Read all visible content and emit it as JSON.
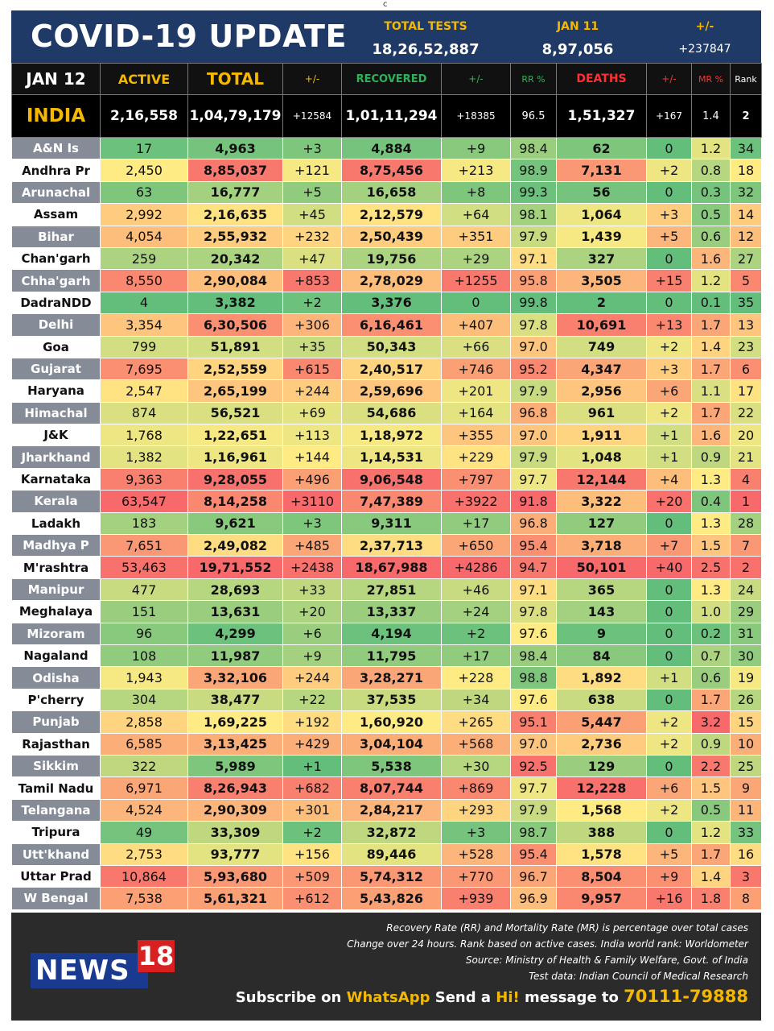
{
  "top_mark": "c",
  "banner": {
    "title": "COVID-19 UPDATE",
    "tests_label": "TOTAL TESTS",
    "tests_value": "18,26,52,887",
    "date_label": "JAN 11",
    "date_value": "8,97,056",
    "change_label": "+/-",
    "change_value": "+237847"
  },
  "header": {
    "date": "JAN 12",
    "active": "ACTIVE",
    "total": "TOTAL",
    "total_change": "+/-",
    "recovered": "RECOVERED",
    "recovered_change": "+/-",
    "rr": "RR %",
    "deaths": "DEATHS",
    "deaths_change": "+/-",
    "mr": "MR %",
    "rank": "Rank"
  },
  "india": {
    "name": "INDIA",
    "active": "2,16,558",
    "total": "1,04,79,179",
    "total_change": "+12584",
    "recovered": "1,01,11,294",
    "recovered_change": "+18385",
    "rr": "96.5",
    "deaths": "1,51,327",
    "deaths_change": "+167",
    "mr": "1.4",
    "rank": "2"
  },
  "states": [
    {
      "name": "A&N Is",
      "active": "17",
      "total": "4,963",
      "total_change": "+3",
      "recovered": "4,884",
      "recovered_change": "+9",
      "rr": "98.4",
      "deaths": "62",
      "deaths_change": "0",
      "mr": "1.2",
      "rank": "34"
    },
    {
      "name": "Andhra Pr",
      "active": "2,450",
      "total": "8,85,037",
      "total_change": "+121",
      "recovered": "8,75,456",
      "recovered_change": "+213",
      "rr": "98.9",
      "deaths": "7,131",
      "deaths_change": "+2",
      "mr": "0.8",
      "rank": "18"
    },
    {
      "name": "Arunachal",
      "active": "63",
      "total": "16,777",
      "total_change": "+5",
      "recovered": "16,658",
      "recovered_change": "+8",
      "rr": "99.3",
      "deaths": "56",
      "deaths_change": "0",
      "mr": "0.3",
      "rank": "32"
    },
    {
      "name": "Assam",
      "active": "2,992",
      "total": "2,16,635",
      "total_change": "+45",
      "recovered": "2,12,579",
      "recovered_change": "+64",
      "rr": "98.1",
      "deaths": "1,064",
      "deaths_change": "+3",
      "mr": "0.5",
      "rank": "14"
    },
    {
      "name": "Bihar",
      "active": "4,054",
      "total": "2,55,932",
      "total_change": "+232",
      "recovered": "2,50,439",
      "recovered_change": "+351",
      "rr": "97.9",
      "deaths": "1,439",
      "deaths_change": "+5",
      "mr": "0.6",
      "rank": "12"
    },
    {
      "name": "Chan'garh",
      "active": "259",
      "total": "20,342",
      "total_change": "+47",
      "recovered": "19,756",
      "recovered_change": "+29",
      "rr": "97.1",
      "deaths": "327",
      "deaths_change": "0",
      "mr": "1.6",
      "rank": "27"
    },
    {
      "name": "Chha'garh",
      "active": "8,550",
      "total": "2,90,084",
      "total_change": "+853",
      "recovered": "2,78,029",
      "recovered_change": "+1255",
      "rr": "95.8",
      "deaths": "3,505",
      "deaths_change": "+15",
      "mr": "1.2",
      "rank": "5"
    },
    {
      "name": "DadraNDD",
      "active": "4",
      "total": "3,382",
      "total_change": "+2",
      "recovered": "3,376",
      "recovered_change": "0",
      "rr": "99.8",
      "deaths": "2",
      "deaths_change": "0",
      "mr": "0.1",
      "rank": "35"
    },
    {
      "name": "Delhi",
      "active": "3,354",
      "total": "6,30,506",
      "total_change": "+306",
      "recovered": "6,16,461",
      "recovered_change": "+407",
      "rr": "97.8",
      "deaths": "10,691",
      "deaths_change": "+13",
      "mr": "1.7",
      "rank": "13"
    },
    {
      "name": "Goa",
      "active": "799",
      "total": "51,891",
      "total_change": "+35",
      "recovered": "50,343",
      "recovered_change": "+66",
      "rr": "97.0",
      "deaths": "749",
      "deaths_change": "+2",
      "mr": "1.4",
      "rank": "23"
    },
    {
      "name": "Gujarat",
      "active": "7,695",
      "total": "2,52,559",
      "total_change": "+615",
      "recovered": "2,40,517",
      "recovered_change": "+746",
      "rr": "95.2",
      "deaths": "4,347",
      "deaths_change": "+3",
      "mr": "1.7",
      "rank": "6"
    },
    {
      "name": "Haryana",
      "active": "2,547",
      "total": "2,65,199",
      "total_change": "+244",
      "recovered": "2,59,696",
      "recovered_change": "+201",
      "rr": "97.9",
      "deaths": "2,956",
      "deaths_change": "+6",
      "mr": "1.1",
      "rank": "17"
    },
    {
      "name": "Himachal",
      "active": "874",
      "total": "56,521",
      "total_change": "+69",
      "recovered": "54,686",
      "recovered_change": "+164",
      "rr": "96.8",
      "deaths": "961",
      "deaths_change": "+2",
      "mr": "1.7",
      "rank": "22"
    },
    {
      "name": "J&K",
      "active": "1,768",
      "total": "1,22,651",
      "total_change": "+113",
      "recovered": "1,18,972",
      "recovered_change": "+355",
      "rr": "97.0",
      "deaths": "1,911",
      "deaths_change": "+1",
      "mr": "1.6",
      "rank": "20"
    },
    {
      "name": "Jharkhand",
      "active": "1,382",
      "total": "1,16,961",
      "total_change": "+144",
      "recovered": "1,14,531",
      "recovered_change": "+229",
      "rr": "97.9",
      "deaths": "1,048",
      "deaths_change": "+1",
      "mr": "0.9",
      "rank": "21"
    },
    {
      "name": "Karnataka",
      "active": "9,363",
      "total": "9,28,055",
      "total_change": "+496",
      "recovered": "9,06,548",
      "recovered_change": "+797",
      "rr": "97.7",
      "deaths": "12,144",
      "deaths_change": "+4",
      "mr": "1.3",
      "rank": "4"
    },
    {
      "name": "Kerala",
      "active": "63,547",
      "total": "8,14,258",
      "total_change": "+3110",
      "recovered": "7,47,389",
      "recovered_change": "+3922",
      "rr": "91.8",
      "deaths": "3,322",
      "deaths_change": "+20",
      "mr": "0.4",
      "rank": "1"
    },
    {
      "name": "Ladakh",
      "active": "183",
      "total": "9,621",
      "total_change": "+3",
      "recovered": "9,311",
      "recovered_change": "+17",
      "rr": "96.8",
      "deaths": "127",
      "deaths_change": "0",
      "mr": "1.3",
      "rank": "28"
    },
    {
      "name": "Madhya P",
      "active": "7,651",
      "total": "2,49,082",
      "total_change": "+485",
      "recovered": "2,37,713",
      "recovered_change": "+650",
      "rr": "95.4",
      "deaths": "3,718",
      "deaths_change": "+7",
      "mr": "1.5",
      "rank": "7"
    },
    {
      "name": "M'rashtra",
      "active": "53,463",
      "total": "19,71,552",
      "total_change": "+2438",
      "recovered": "18,67,988",
      "recovered_change": "+4286",
      "rr": "94.7",
      "deaths": "50,101",
      "deaths_change": "+40",
      "mr": "2.5",
      "rank": "2"
    },
    {
      "name": "Manipur",
      "active": "477",
      "total": "28,693",
      "total_change": "+33",
      "recovered": "27,851",
      "recovered_change": "+46",
      "rr": "97.1",
      "deaths": "365",
      "deaths_change": "0",
      "mr": "1.3",
      "rank": "24"
    },
    {
      "name": "Meghalaya",
      "active": "151",
      "total": "13,631",
      "total_change": "+20",
      "recovered": "13,337",
      "recovered_change": "+24",
      "rr": "97.8",
      "deaths": "143",
      "deaths_change": "0",
      "mr": "1.0",
      "rank": "29"
    },
    {
      "name": "Mizoram",
      "active": "96",
      "total": "4,299",
      "total_change": "+6",
      "recovered": "4,194",
      "recovered_change": "+2",
      "rr": "97.6",
      "deaths": "9",
      "deaths_change": "0",
      "mr": "0.2",
      "rank": "31"
    },
    {
      "name": "Nagaland",
      "active": "108",
      "total": "11,987",
      "total_change": "+9",
      "recovered": "11,795",
      "recovered_change": "+17",
      "rr": "98.4",
      "deaths": "84",
      "deaths_change": "0",
      "mr": "0.7",
      "rank": "30"
    },
    {
      "name": "Odisha",
      "active": "1,943",
      "total": "3,32,106",
      "total_change": "+244",
      "recovered": "3,28,271",
      "recovered_change": "+228",
      "rr": "98.8",
      "deaths": "1,892",
      "deaths_change": "+1",
      "mr": "0.6",
      "rank": "19"
    },
    {
      "name": "P'cherry",
      "active": "304",
      "total": "38,477",
      "total_change": "+22",
      "recovered": "37,535",
      "recovered_change": "+34",
      "rr": "97.6",
      "deaths": "638",
      "deaths_change": "0",
      "mr": "1.7",
      "rank": "26"
    },
    {
      "name": "Punjab",
      "active": "2,858",
      "total": "1,69,225",
      "total_change": "+192",
      "recovered": "1,60,920",
      "recovered_change": "+265",
      "rr": "95.1",
      "deaths": "5,447",
      "deaths_change": "+2",
      "mr": "3.2",
      "rank": "15"
    },
    {
      "name": "Rajasthan",
      "active": "6,585",
      "total": "3,13,425",
      "total_change": "+429",
      "recovered": "3,04,104",
      "recovered_change": "+568",
      "rr": "97.0",
      "deaths": "2,736",
      "deaths_change": "+2",
      "mr": "0.9",
      "rank": "10"
    },
    {
      "name": "Sikkim",
      "active": "322",
      "total": "5,989",
      "total_change": "+1",
      "recovered": "5,538",
      "recovered_change": "+30",
      "rr": "92.5",
      "deaths": "129",
      "deaths_change": "0",
      "mr": "2.2",
      "rank": "25"
    },
    {
      "name": "Tamil Nadu",
      "active": "6,971",
      "total": "8,26,943",
      "total_change": "+682",
      "recovered": "8,07,744",
      "recovered_change": "+869",
      "rr": "97.7",
      "deaths": "12,228",
      "deaths_change": "+6",
      "mr": "1.5",
      "rank": "9"
    },
    {
      "name": "Telangana",
      "active": "4,524",
      "total": "2,90,309",
      "total_change": "+301",
      "recovered": "2,84,217",
      "recovered_change": "+293",
      "rr": "97.9",
      "deaths": "1,568",
      "deaths_change": "+2",
      "mr": "0.5",
      "rank": "11"
    },
    {
      "name": "Tripura",
      "active": "49",
      "total": "33,309",
      "total_change": "+2",
      "recovered": "32,872",
      "recovered_change": "+3",
      "rr": "98.7",
      "deaths": "388",
      "deaths_change": "0",
      "mr": "1.2",
      "rank": "33"
    },
    {
      "name": "Utt'khand",
      "active": "2,753",
      "total": "93,777",
      "total_change": "+156",
      "recovered": "89,446",
      "recovered_change": "+528",
      "rr": "95.4",
      "deaths": "1,578",
      "deaths_change": "+5",
      "mr": "1.7",
      "rank": "16"
    },
    {
      "name": "Uttar Prad",
      "active": "10,864",
      "total": "5,93,680",
      "total_change": "+509",
      "recovered": "5,74,312",
      "recovered_change": "+770",
      "rr": "96.7",
      "deaths": "8,504",
      "deaths_change": "+9",
      "mr": "1.4",
      "rank": "3"
    },
    {
      "name": "W Bengal",
      "active": "7,538",
      "total": "5,61,321",
      "total_change": "+612",
      "recovered": "5,43,826",
      "recovered_change": "+939",
      "rr": "96.9",
      "deaths": "9,957",
      "deaths_change": "+16",
      "mr": "1.8",
      "rank": "8"
    }
  ],
  "footer": {
    "logo_text": "NEWS",
    "logo_number": "18",
    "note_1": "Recovery Rate (RR) and Mortality Rate (MR) is percentage over total cases",
    "note_2": "Change over 24 hours. Rank based on active cases. India world rank: Worldometer",
    "note_3": "Source: Ministry of Health & Family Welfare, Govt. of India",
    "note_4": "Test data: Indian Council of Medical Research",
    "subscribe_1": "Subscribe on ",
    "subscribe_whatsapp": "WhatsApp",
    "subscribe_2": " Send a ",
    "subscribe_hi": "Hi!",
    "subscribe_3": " message to ",
    "subscribe_number": "70111-79888"
  },
  "colors": {
    "banner_bg": "#1f3a66",
    "accent_yellow": "#f5b800",
    "recovered_green": "#2fb35a",
    "rr_green": "#2fb35a",
    "deaths_red": "#ff3030",
    "mr_red": "#ff3030",
    "scale_green": "#63be7b",
    "scale_yellow": "#ffeb84",
    "scale_red": "#f8696b"
  }
}
